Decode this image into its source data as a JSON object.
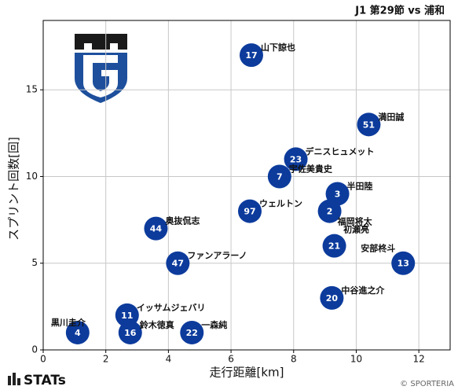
{
  "chart_data": {
    "type": "scatter",
    "title": "J1 第29節 vs 浦和",
    "xlabel": "走行距離[km]",
    "ylabel": "スプリント回数[回]",
    "logo_text": "STATs",
    "credit": "© SPORTERIA",
    "color": "#0c3b9c",
    "grid": true,
    "xlim": [
      0,
      13
    ],
    "xticks": [
      0,
      2,
      4,
      6,
      8,
      10,
      12
    ],
    "ylim": [
      0,
      19
    ],
    "yticks": [
      0,
      5,
      10,
      15
    ],
    "numbers": [
      "17",
      "51",
      "23",
      "7",
      "3",
      "97",
      "2",
      "44",
      "21",
      "47",
      "13",
      "20",
      "11",
      "4",
      "16",
      "22"
    ],
    "names": [
      "山下諒也",
      "満田誠",
      "デニスヒュメット",
      "宇佐美貴史",
      "半田陸",
      "ウェルトン",
      "福岡将太",
      "奥抜侃志",
      "初瀬亮",
      "ファンアラーノ",
      "安部柊斗",
      "中谷進之介",
      "イッサムジェバリ",
      "黒川圭介",
      "鈴木徳真",
      "一森純"
    ],
    "x": [
      6.65,
      10.4,
      8.07,
      7.55,
      9.4,
      6.6,
      9.15,
      3.6,
      9.3,
      4.3,
      11.5,
      9.22,
      2.68,
      1.1,
      2.78,
      4.75
    ],
    "values": [
      17,
      13,
      11,
      10,
      9,
      8,
      8,
      7,
      6,
      5,
      5,
      3,
      2,
      1,
      1,
      1
    ]
  }
}
